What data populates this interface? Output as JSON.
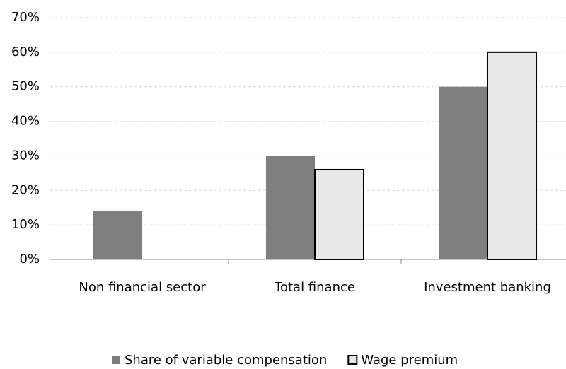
{
  "chart_data": {
    "type": "bar",
    "categories": [
      "Non financial sector",
      "Total finance",
      "Investment banking"
    ],
    "series": [
      {
        "name": "Share of variable compensation",
        "color": "#7f7f7f",
        "values": [
          14,
          30,
          50
        ]
      },
      {
        "name": "Wage premium",
        "color": "#e8e8e8",
        "values": [
          0,
          26,
          60
        ]
      }
    ],
    "ylim": [
      0,
      70
    ],
    "yticks": [
      {
        "value": 0,
        "label": "0%"
      },
      {
        "value": 10,
        "label": "10%"
      },
      {
        "value": 20,
        "label": "20%"
      },
      {
        "value": 30,
        "label": "30%"
      },
      {
        "value": 40,
        "label": "40%"
      },
      {
        "value": 50,
        "label": "50%"
      },
      {
        "value": 60,
        "label": "60%"
      },
      {
        "value": 70,
        "label": "70%"
      }
    ],
    "grid": true,
    "legend": "bottom"
  }
}
